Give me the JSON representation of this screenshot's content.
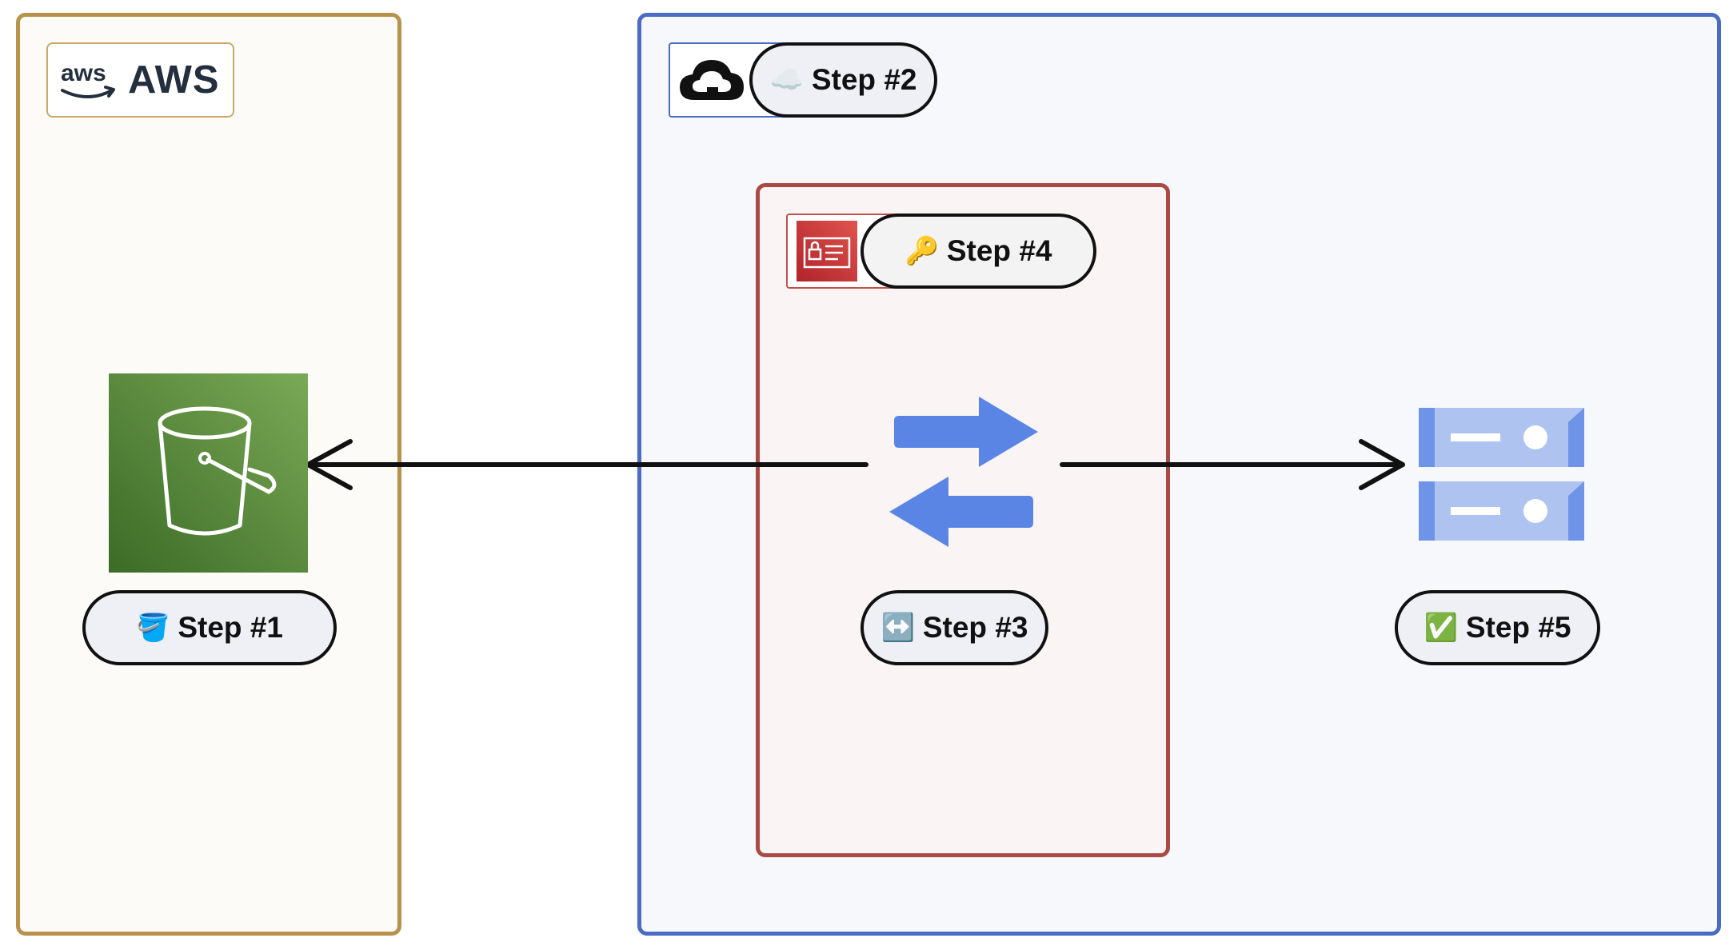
{
  "groups": {
    "aws": {
      "label": "AWS",
      "color": "#b8924a"
    },
    "gcp": {
      "color": "#4a6cc4"
    },
    "iam": {
      "color": "#a94a45"
    }
  },
  "steps": {
    "step1": {
      "icon": "🪣",
      "label": "Step #1"
    },
    "step2": {
      "icon": "☁️",
      "label": "Step #2"
    },
    "step3": {
      "icon": "↔️",
      "label": "Step #3"
    },
    "step4": {
      "icon": "🔑",
      "label": "Step #4"
    },
    "step5": {
      "icon": "✅",
      "label": "Step #5"
    }
  },
  "icons": {
    "aws_logo": "aws-logo-icon",
    "gcp_logo": "google-cloud-icon",
    "iam_logo": "iam-credentials-icon",
    "bucket": "s3-bucket-icon",
    "transfer": "transfer-arrows-icon",
    "storage": "storage-server-icon"
  }
}
